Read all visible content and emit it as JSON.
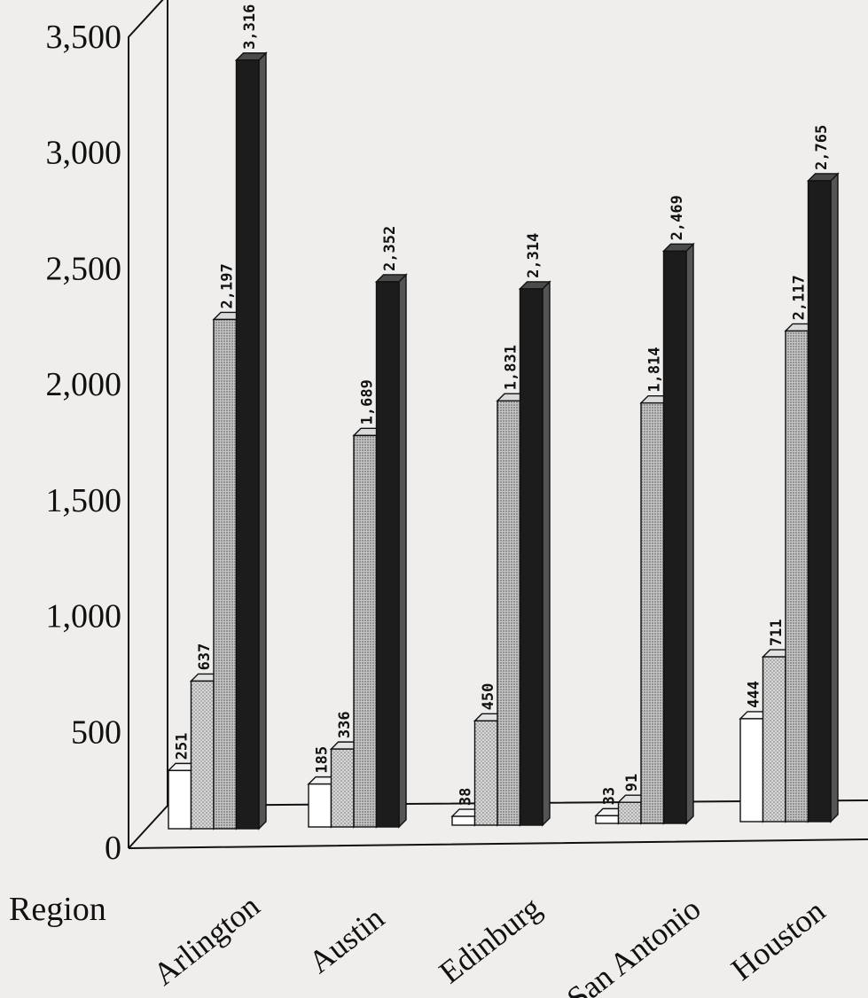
{
  "chart_data": {
    "type": "bar",
    "title": "",
    "xlabel": "Region",
    "ylabel": "",
    "ylim": [
      0,
      3500
    ],
    "yticks": [
      "0",
      "500",
      "1,000",
      "1,500",
      "2,000",
      "2,500",
      "3,000",
      "3,500"
    ],
    "categories": [
      "Arlington",
      "Austin",
      "Edinburg",
      "San Antonio",
      "Houston"
    ],
    "series": [
      {
        "values": [
          251,
          185,
          38,
          33,
          444
        ],
        "labels": [
          "251",
          "185",
          "38",
          "33",
          "444"
        ],
        "color": "#ffffff"
      },
      {
        "values": [
          637,
          336,
          450,
          91,
          711
        ],
        "labels": [
          "637",
          "336",
          "450",
          "91",
          "711"
        ],
        "color": "#cfcfcf"
      },
      {
        "values": [
          2197,
          1689,
          1831,
          1814,
          2117
        ],
        "labels": [
          "2,197",
          "1,689",
          "1,831",
          "1,814",
          "2,117"
        ],
        "color": "#b9b9b9"
      },
      {
        "values": [
          3316,
          2352,
          2314,
          2469,
          2765
        ],
        "labels": [
          "3,316",
          "2,352",
          "2,314",
          "2,469",
          "2,765"
        ],
        "color": "#1c1c1c"
      }
    ],
    "grid": false,
    "legend": "none",
    "style": "3d-bars"
  }
}
